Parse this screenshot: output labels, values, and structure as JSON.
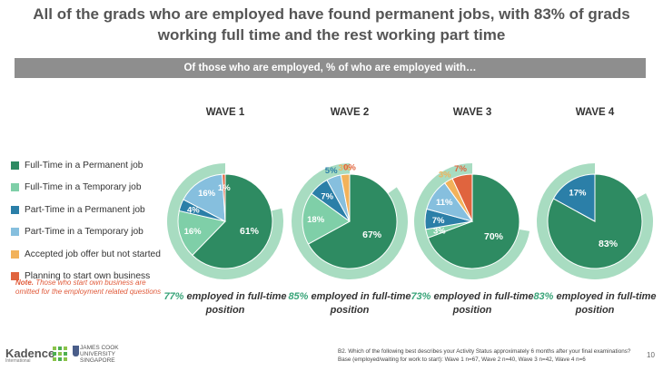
{
  "title": "All of the grads who are employed have found permanent jobs, with 83% of grads working full time and the rest working part time",
  "banner": "Of those who are employed, % of who are employed with…",
  "legend": [
    {
      "label": "Full-Time in a Permanent job",
      "color": "#2e8b62"
    },
    {
      "label": "Full-Time in a Temporary job",
      "color": "#7fcfa8"
    },
    {
      "label": "Part-Time in a Permanent job",
      "color": "#2b7fa8"
    },
    {
      "label": "Part-Time in a Temporary job",
      "color": "#86bfde"
    },
    {
      "label": "Accepted job offer but not started",
      "color": "#f2b25a"
    },
    {
      "label": "Planning to start own business",
      "color": "#e0643e"
    }
  ],
  "note": {
    "bold": "Note.",
    "text": " Those who start own business are omitted for the employment related questions"
  },
  "chart_data": [
    {
      "type": "pie",
      "title": "WAVE 1",
      "categories": [
        "Full-Time in a Permanent job",
        "Full-Time in a Temporary job",
        "Part-Time in a Permanent job",
        "Part-Time in a Temporary job",
        "Accepted job offer but not started",
        "Planning to start own business"
      ],
      "values": [
        61,
        16,
        4,
        16,
        0,
        1
      ],
      "labels": [
        "61%",
        "16%",
        "4%",
        "16%",
        "",
        "1%"
      ],
      "highlight_total": 77,
      "caption_pct": "77%",
      "caption_text": " employed in full-time position"
    },
    {
      "type": "pie",
      "title": "WAVE 2",
      "categories": [
        "Full-Time in a Permanent job",
        "Full-Time in a Temporary job",
        "Part-Time in a Permanent job",
        "Part-Time in a Temporary job",
        "Accepted job offer but not started",
        "Planning to start own business"
      ],
      "values": [
        67,
        18,
        7,
        5,
        3,
        0
      ],
      "labels": [
        "67%",
        "18%",
        "7%",
        "5%",
        "3%",
        "0%"
      ],
      "highlight_total": 85,
      "caption_pct": "85%",
      "caption_text": " employed in full-time position"
    },
    {
      "type": "pie",
      "title": "WAVE 3",
      "categories": [
        "Full-Time in a Permanent job",
        "Full-Time in a Temporary job",
        "Part-Time in a Permanent job",
        "Part-Time in a Temporary job",
        "Accepted job offer but not started",
        "Planning to start own business"
      ],
      "values": [
        70,
        3,
        7,
        11,
        3,
        7
      ],
      "labels": [
        "70%",
        "3%",
        "7%",
        "11%",
        "3%",
        "7%"
      ],
      "highlight_total": 73,
      "caption_pct": "73%",
      "caption_text": " employed in full-time position"
    },
    {
      "type": "pie",
      "title": "WAVE 4",
      "categories": [
        "Full-Time in a Permanent job",
        "Full-Time in a Temporary job",
        "Part-Time in a Permanent job",
        "Part-Time in a Temporary job",
        "Accepted job offer but not started",
        "Planning to start own business"
      ],
      "values": [
        83,
        0,
        17,
        0,
        0,
        0
      ],
      "labels": [
        "83%",
        "",
        "17%",
        "",
        "",
        ""
      ],
      "highlight_total": 83,
      "caption_pct": "83%",
      "caption_text": " employed in full-time position"
    }
  ],
  "footer": {
    "logo_text": "Kadence",
    "logo_sub": "International",
    "jcu_line1": "JAMES COOK",
    "jcu_line2": "UNIVERSITY",
    "jcu_line3": "SINGAPORE",
    "base_line1": "B2. Which of the following best describes your Activity Status approximately 6 months after your final examinations?",
    "base_line2": "Base (employed/waiting for work to start): Wave 1 n=67, Wave 2 n=40, Wave 3 n=42, Wave 4 n=6",
    "page": "10"
  }
}
